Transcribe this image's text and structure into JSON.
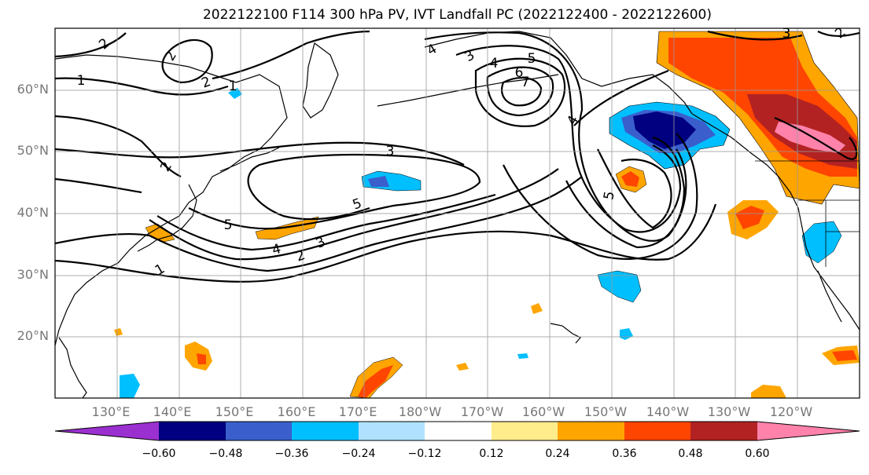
{
  "title": "2022122100 F114 300 hPa PV, IVT Landfall PC (2022122400 - 2022122600)",
  "lat_labels": [
    "60°N",
    "50°N",
    "40°N",
    "30°N",
    "20°N"
  ],
  "lon_labels": [
    "130°E",
    "140°E",
    "150°E",
    "160°E",
    "170°E",
    "180°W",
    "170°W",
    "160°W",
    "150°W",
    "140°W",
    "130°W",
    "120°W"
  ],
  "contour_labels": [
    "2",
    "2",
    "1",
    "2",
    "1",
    "2",
    "3",
    "5",
    "5",
    "4",
    "2",
    "3",
    "1",
    "4",
    "3",
    "4",
    "5",
    "6",
    "7",
    "4",
    "5",
    "3",
    "2"
  ],
  "colorbar": {
    "ticks": [
      "−0.60",
      "−0.48",
      "−0.36",
      "−0.24",
      "−0.12",
      "0.12",
      "0.24",
      "0.36",
      "0.48",
      "0.60"
    ],
    "colors": [
      "#9b30d0",
      "#000080",
      "#3a5fcd",
      "#00bfff",
      "#b0e2ff",
      "#ffffff",
      "#ffec8b",
      "#ffa500",
      "#ff4500",
      "#b22222",
      "#ff82ab"
    ]
  },
  "chart_data": {
    "type": "map",
    "title": "2022122100 F114 300 hPa PV, IVT Landfall PC (2022122400 - 2022122600)",
    "region": "North Pacific",
    "lon_range": [
      "120°E",
      "115°W"
    ],
    "lat_range": [
      "10°N",
      "70°N"
    ],
    "contour_field": "300 hPa PV",
    "contour_levels": [
      1,
      2,
      3,
      4,
      5,
      6,
      7
    ],
    "shaded_field": "IVT Landfall PC",
    "color_levels": [
      -0.6,
      -0.48,
      -0.36,
      -0.24,
      -0.12,
      0.12,
      0.24,
      0.36,
      0.48,
      0.6
    ],
    "grid": true
  }
}
